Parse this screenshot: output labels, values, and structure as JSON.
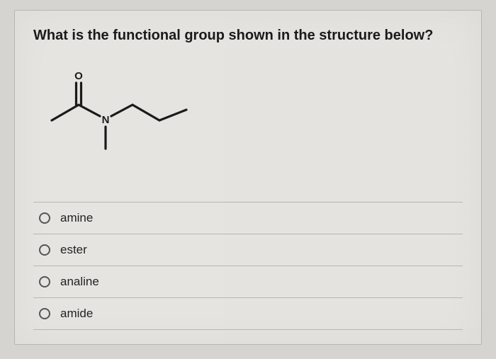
{
  "question": "What is the functional group shown in the structure below?",
  "options": [
    {
      "label": "amine"
    },
    {
      "label": "ester"
    },
    {
      "label": "analine"
    },
    {
      "label": "amide"
    }
  ],
  "diagram": {
    "o_label": "O",
    "n_label": "N",
    "stroke": "#1a1a1a",
    "stroke_width": 3.2,
    "label_font_size": 15,
    "label_font_weight": "700"
  }
}
